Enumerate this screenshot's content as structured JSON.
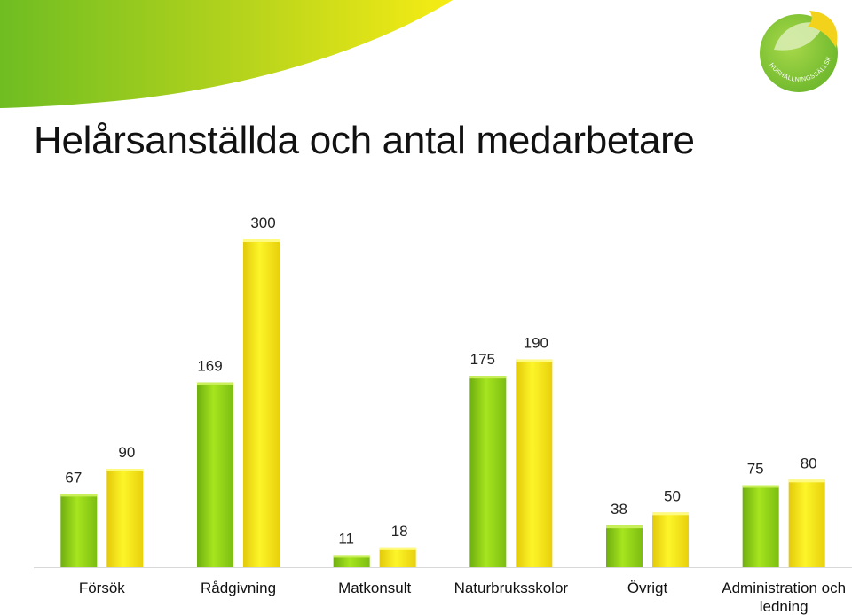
{
  "title": "Helårsanställda och antal medarbetare",
  "logo": {
    "name": "hushallningssallskapet-logo",
    "text": "HUSHÅLLNINGSSÄLLSKAPET"
  },
  "colors": {
    "series1": "#8fd11a",
    "series2": "#f3e60f",
    "banner_green": "#7dc21f",
    "banner_yellow": "#f6ea1a"
  },
  "chart_data": {
    "type": "bar",
    "title": "Helårsanställda och antal medarbetare",
    "xlabel": "",
    "ylabel": "",
    "ylim": [
      0,
      300
    ],
    "grid": false,
    "legend": "none",
    "categories": [
      "Försök",
      "Rådgivning",
      "Matkonsult",
      "Naturbruksskolor",
      "Övrigt",
      "Administration och ledning"
    ],
    "category_lines": [
      [
        "Försök"
      ],
      [
        "Rådgivning"
      ],
      [
        "Matkonsult"
      ],
      [
        "Naturbruksskolor"
      ],
      [
        "Övrigt"
      ],
      [
        "Administration och",
        "ledning"
      ]
    ],
    "series": [
      {
        "values": [
          67,
          169,
          11,
          175,
          38,
          75
        ]
      },
      {
        "values": [
          90,
          300,
          18,
          190,
          50,
          80
        ]
      }
    ]
  }
}
